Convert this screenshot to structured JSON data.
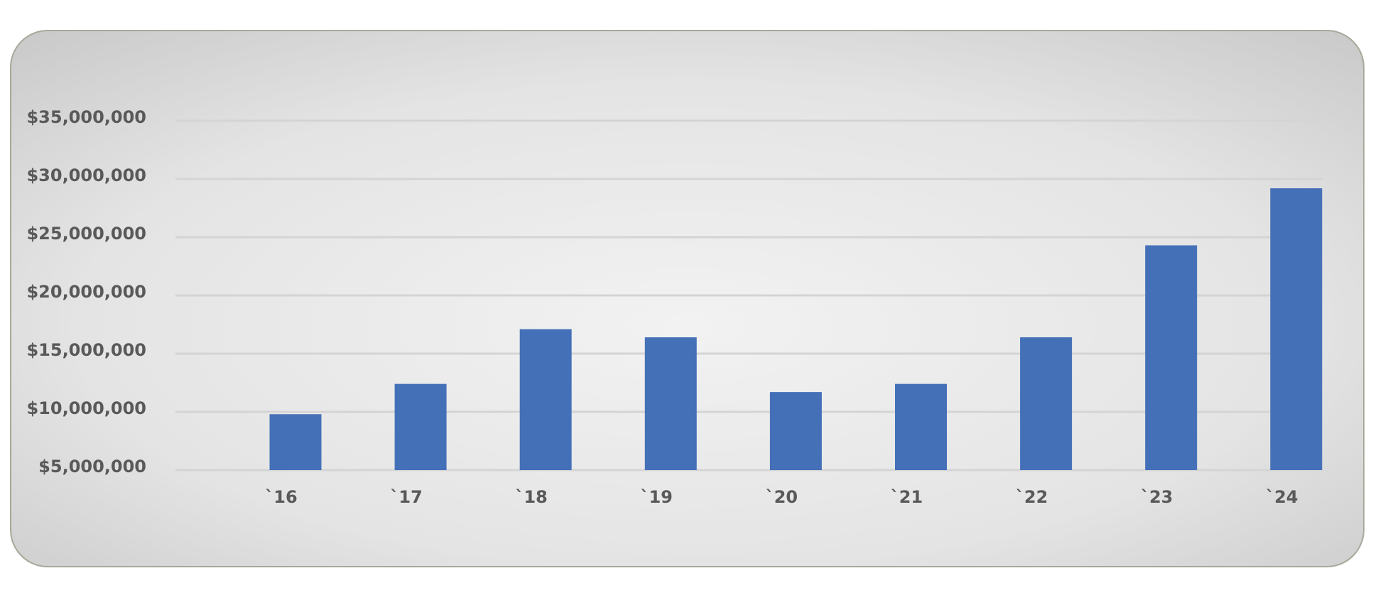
{
  "chart_data": {
    "type": "bar",
    "categories": [
      "`16",
      "`17",
      "`18",
      "`19",
      "`20",
      "`21",
      "`22",
      "`23",
      "`24"
    ],
    "values": [
      9800000,
      12400000,
      17100000,
      16400000,
      11700000,
      12400000,
      16400000,
      24300000,
      29200000
    ],
    "color": "#4470b8",
    "ylim": [
      5000000,
      35000000
    ],
    "yticks": [
      {
        "value": 5000000,
        "label": "$5,000,000"
      },
      {
        "value": 10000000,
        "label": "$10,000,000"
      },
      {
        "value": 15000000,
        "label": "$15,000,000"
      },
      {
        "value": 20000000,
        "label": "$20,000,000"
      },
      {
        "value": 25000000,
        "label": "$25,000,000"
      },
      {
        "value": 30000000,
        "label": "$30,000,000"
      },
      {
        "value": 35000000,
        "label": "$35,000,000"
      }
    ],
    "grid": true
  }
}
